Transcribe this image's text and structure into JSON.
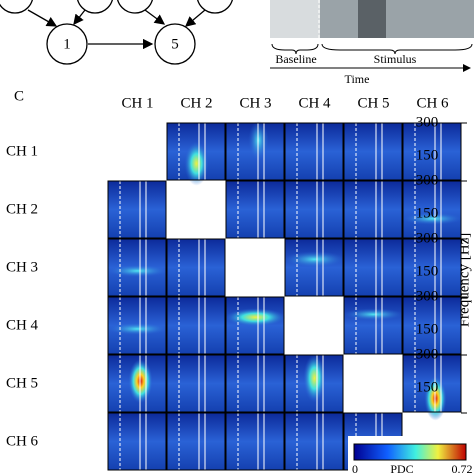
{
  "diagram": {
    "nodes": [
      {
        "label": "1"
      },
      {
        "label": "5"
      }
    ]
  },
  "timeline": {
    "baseline": "Baseline",
    "stimulus": "Stimulus",
    "axis": "Time"
  },
  "panel": {
    "label": "C",
    "columns": [
      "CH 1",
      "CH 2",
      "CH 3",
      "CH 4",
      "CH 5",
      "CH 6"
    ],
    "rows": [
      {
        "label": "CH 1",
        "ticks": [
          "300",
          "150"
        ]
      },
      {
        "label": "CH 2",
        "ticks": [
          "300",
          "150"
        ]
      },
      {
        "label": "CH 3",
        "ticks": [
          "300",
          "150"
        ]
      },
      {
        "label": "CH 4",
        "ticks": [
          "300",
          "150"
        ]
      },
      {
        "label": "CH 5",
        "ticks": [
          "300",
          "150"
        ]
      },
      {
        "label": "CH 6"
      }
    ],
    "y_axis_label": "Frequency [Hz]",
    "colorbar": {
      "min": "0",
      "label": "PDC",
      "max": "0.72"
    }
  }
}
